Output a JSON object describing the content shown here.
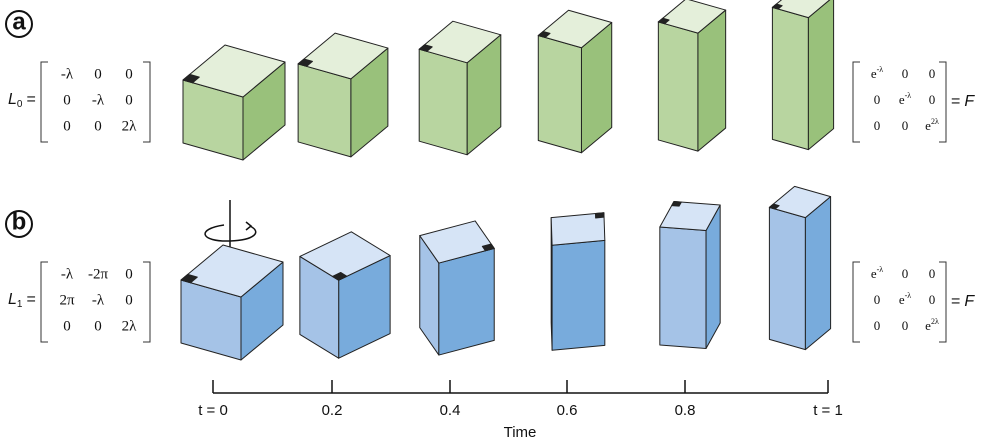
{
  "panels": [
    {
      "label": "a",
      "generator": {
        "name": "L",
        "index": "0",
        "equals": "="
      },
      "matrix": [
        [
          "-λ",
          "0",
          "0"
        ],
        [
          "0",
          "-λ",
          "0"
        ],
        [
          "0",
          "0",
          "2λ"
        ]
      ],
      "result": {
        "matrix": [
          [
            {
              "base": "e",
              "exp": "-λ"
            },
            "0",
            "0"
          ],
          [
            "0",
            {
              "base": "e",
              "exp": "-λ"
            },
            "0"
          ],
          [
            "0",
            "0",
            {
              "base": "e",
              "exp": "2λ"
            }
          ]
        ],
        "equals": "=",
        "name": "F"
      }
    },
    {
      "label": "b",
      "generator": {
        "name": "L",
        "index": "1",
        "equals": "="
      },
      "matrix": [
        [
          "-λ",
          "-2π",
          "0"
        ],
        [
          "2π",
          "-λ",
          "0"
        ],
        [
          "0",
          "0",
          "2λ"
        ]
      ],
      "result": {
        "matrix": [
          [
            {
              "base": "e",
              "exp": "-λ"
            },
            "0",
            "0"
          ],
          [
            "0",
            {
              "base": "e",
              "exp": "-λ"
            },
            "0"
          ],
          [
            "0",
            "0",
            {
              "base": "e",
              "exp": "2λ"
            }
          ]
        ],
        "equals": "=",
        "name": "F"
      }
    }
  ],
  "timeline": {
    "ticks": [
      "t = 0",
      "0.2",
      "0.4",
      "0.6",
      "0.8",
      "t = 1"
    ],
    "label": "Time"
  }
}
